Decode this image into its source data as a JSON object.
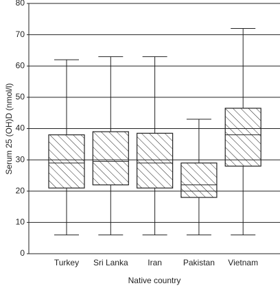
{
  "chart_data": {
    "type": "box",
    "categories": [
      "Turkey",
      "Sri Lanka",
      "Iran",
      "Pakistan",
      "Vietnam"
    ],
    "min": [
      6,
      6,
      6,
      6,
      6
    ],
    "q1": [
      21,
      22,
      21,
      18,
      28
    ],
    "median": [
      29,
      29.5,
      29,
      22,
      38
    ],
    "q3": [
      38,
      39,
      38.5,
      29,
      46.5
    ],
    "max": [
      62,
      63,
      63,
      43,
      72
    ],
    "ylim": [
      0,
      80
    ],
    "yticks": [
      0,
      10,
      20,
      30,
      40,
      50,
      60,
      70,
      80
    ],
    "grid": true,
    "ylabel": "Serum 25 (OH)D (nmol/l)",
    "xlabel": "Native country"
  }
}
